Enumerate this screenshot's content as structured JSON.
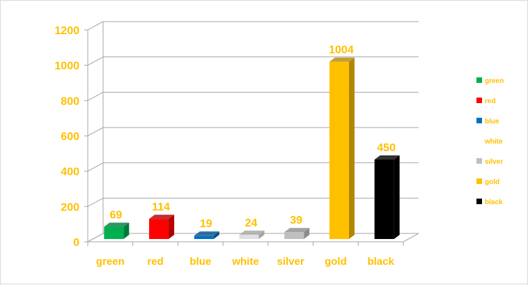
{
  "chart_data": {
    "type": "bar",
    "style": "3d-column",
    "categories": [
      "green",
      "red",
      "blue",
      "white",
      "silver",
      "gold",
      "black"
    ],
    "values": [
      69,
      114,
      19,
      24,
      39,
      1004,
      450
    ],
    "colors": [
      "#00b050",
      "#ff0000",
      "#0070c0",
      "#e0e0e0",
      "#bfbfbf",
      "#ffc000",
      "#000000"
    ],
    "side_colors": [
      "#007a38",
      "#b00000",
      "#004f88",
      "#a6a6a6",
      "#8c8c8c",
      "#b38600",
      "#000000"
    ],
    "yticks": [
      0,
      200,
      400,
      600,
      800,
      1000,
      1200
    ],
    "ylim": [
      0,
      1200
    ],
    "grid": true,
    "data_labels": true,
    "legend": {
      "placement": "right",
      "entries": [
        "green",
        "red",
        "blue",
        "white",
        "silver",
        "gold",
        "black"
      ]
    },
    "text_color": "#ffc000",
    "title": "",
    "xlabel": "",
    "ylabel": ""
  }
}
